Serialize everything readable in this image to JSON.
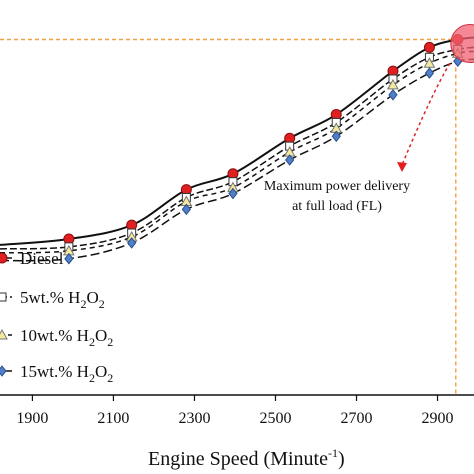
{
  "chart_data": {
    "type": "line",
    "xlabel": "Engine Speed (Minute",
    "xlabel_sup": "-1",
    "xlabel_close": ")",
    "xlim": [
      1820,
      2990
    ],
    "ylim": [
      0,
      100
    ],
    "x_ticks": [
      1900,
      2100,
      2300,
      2500,
      2700,
      2900
    ],
    "grid": false,
    "legend_placement": "lower-left",
    "annotation": {
      "line1": "Maximum  power delivery",
      "line2": "at full load (FL)",
      "target": [
        2950,
        90
      ]
    },
    "reference_x": 2945,
    "reference_y": 90,
    "series": [
      {
        "name": "Diesel",
        "label_main": "Diesel",
        "marker": "circle",
        "marker_color": "#e02020",
        "dash": "",
        "x": [
          1820,
          1990,
          2145,
          2280,
          2395,
          2535,
          2650,
          2790,
          2880,
          2950,
          2990
        ],
        "y": [
          38,
          39.5,
          43,
          52,
          56,
          65,
          71,
          82,
          88,
          90,
          90.5
        ]
      },
      {
        "name": "5wt.% H2O2",
        "label_main": "5wt.% H",
        "label_sub": "2",
        "label_mid": "O",
        "label_sub2": "2",
        "marker": "square",
        "marker_color": "#ffffff",
        "dash": "7,3",
        "x": [
          1820,
          1990,
          2145,
          2280,
          2395,
          2535,
          2650,
          2790,
          2880,
          2950,
          2990
        ],
        "y": [
          37,
          37.5,
          41,
          50,
          54,
          63,
          69,
          80,
          85.5,
          87.5,
          88
        ]
      },
      {
        "name": "10wt.% H2O2",
        "label_main": "10wt.% H",
        "label_sub": "2",
        "label_mid": "O",
        "label_sub2": "2",
        "marker": "triangle",
        "marker_color": "#ffffff",
        "dash": "5,4",
        "x": [
          1820,
          1990,
          2145,
          2280,
          2395,
          2535,
          2650,
          2790,
          2880,
          2950,
          2990
        ],
        "y": [
          36,
          36.5,
          40,
          49,
          52.5,
          61.5,
          67.5,
          78.5,
          84,
          86.5,
          87
        ]
      },
      {
        "name": "15wt.% H2O2",
        "label_main": "15wt.% H",
        "label_sub": "2",
        "label_mid": "O",
        "label_sub2": "2",
        "marker": "diamond",
        "marker_color": "#4f7fc8",
        "dash": "9,4",
        "x": [
          1820,
          1990,
          2145,
          2280,
          2395,
          2535,
          2650,
          2790,
          2880,
          2950,
          2990
        ],
        "y": [
          34,
          34.5,
          38.5,
          47,
          51,
          59.5,
          65.5,
          76,
          81.5,
          84.5,
          85
        ]
      }
    ],
    "colors": {
      "line": "#111111",
      "reference": "#f0a040",
      "highlight": "#f06070",
      "annotation_arrow": "#e02020"
    }
  }
}
